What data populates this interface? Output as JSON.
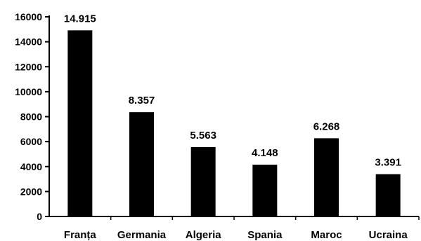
{
  "chart_data": {
    "type": "bar",
    "categories": [
      "Franța",
      "Germania",
      "Algeria",
      "Spania",
      "Maroc",
      "Ucraina"
    ],
    "values": [
      14915,
      8357,
      5563,
      4148,
      6268,
      3391
    ],
    "data_labels": [
      "14.915",
      "8.357",
      "5.563",
      "4.148",
      "6.268",
      "3.391"
    ],
    "y_ticks": [
      0,
      2000,
      4000,
      6000,
      8000,
      10000,
      12000,
      14000,
      16000
    ],
    "y_tick_labels": [
      "0",
      "2000",
      "4000",
      "6000",
      "8000",
      "10000",
      "12000",
      "14000",
      "16000"
    ],
    "ylim": [
      0,
      16000
    ],
    "grid": false,
    "legend": "none",
    "title": "",
    "xlabel": "",
    "ylabel": "",
    "colors": {
      "bar": "#000000",
      "axis": "#000000",
      "background": "#ffffff"
    }
  }
}
